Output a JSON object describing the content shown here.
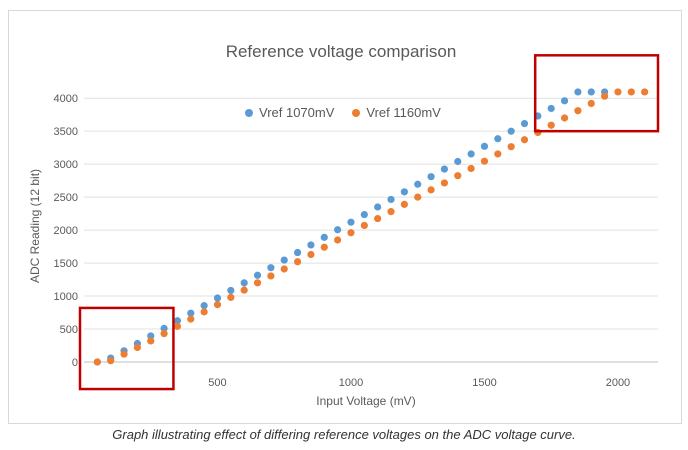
{
  "chart_data": {
    "type": "scatter",
    "title": "Reference voltage comparison",
    "xlabel": "Input Voltage (mV)",
    "ylabel": "ADC Reading (12 bit)",
    "xlim": [
      0,
      2150
    ],
    "ylim": [
      0,
      4200
    ],
    "x_ticks": [
      "500",
      "1000",
      "1500",
      "2000"
    ],
    "y_ticks": [
      "0",
      "500",
      "1000",
      "1500",
      "2000",
      "2500",
      "3000",
      "3500",
      "4000"
    ],
    "grid": "horizontal",
    "legend_position": "top-left",
    "x": [
      50,
      100,
      150,
      200,
      250,
      300,
      350,
      400,
      450,
      500,
      550,
      600,
      650,
      700,
      750,
      800,
      850,
      900,
      950,
      1000,
      1050,
      1100,
      1150,
      1200,
      1250,
      1300,
      1350,
      1400,
      1450,
      1500,
      1550,
      1600,
      1650,
      1700,
      1750,
      1800,
      1850,
      1900,
      1950,
      2000,
      2050,
      2100
    ],
    "series": [
      {
        "name": "Vref 1070mV",
        "color": "#5b9bd5",
        "values": [
          0,
          60,
          170,
          280,
          395,
          510,
          625,
          740,
          855,
          970,
          1085,
          1200,
          1315,
          1430,
          1545,
          1660,
          1775,
          1890,
          2005,
          2120,
          2235,
          2350,
          2465,
          2580,
          2695,
          2810,
          2925,
          3040,
          3155,
          3270,
          3385,
          3500,
          3615,
          3730,
          3845,
          3960,
          4095,
          4095,
          4095,
          null,
          null,
          null
        ]
      },
      {
        "name": "Vref 1160mV",
        "color": "#ed7d31",
        "values": [
          0,
          20,
          120,
          220,
          320,
          430,
          540,
          650,
          760,
          870,
          980,
          1090,
          1200,
          1305,
          1410,
          1520,
          1630,
          1740,
          1850,
          1960,
          2070,
          2175,
          2280,
          2390,
          2500,
          2610,
          2715,
          2825,
          2935,
          3045,
          3155,
          3265,
          3370,
          3480,
          3590,
          3700,
          3810,
          3920,
          4030,
          4095,
          4095,
          4095
        ]
      }
    ]
  },
  "caption": "Graph illustrating effect of differing reference voltages on the ADC voltage curve.",
  "highlight_color": "#c00000"
}
